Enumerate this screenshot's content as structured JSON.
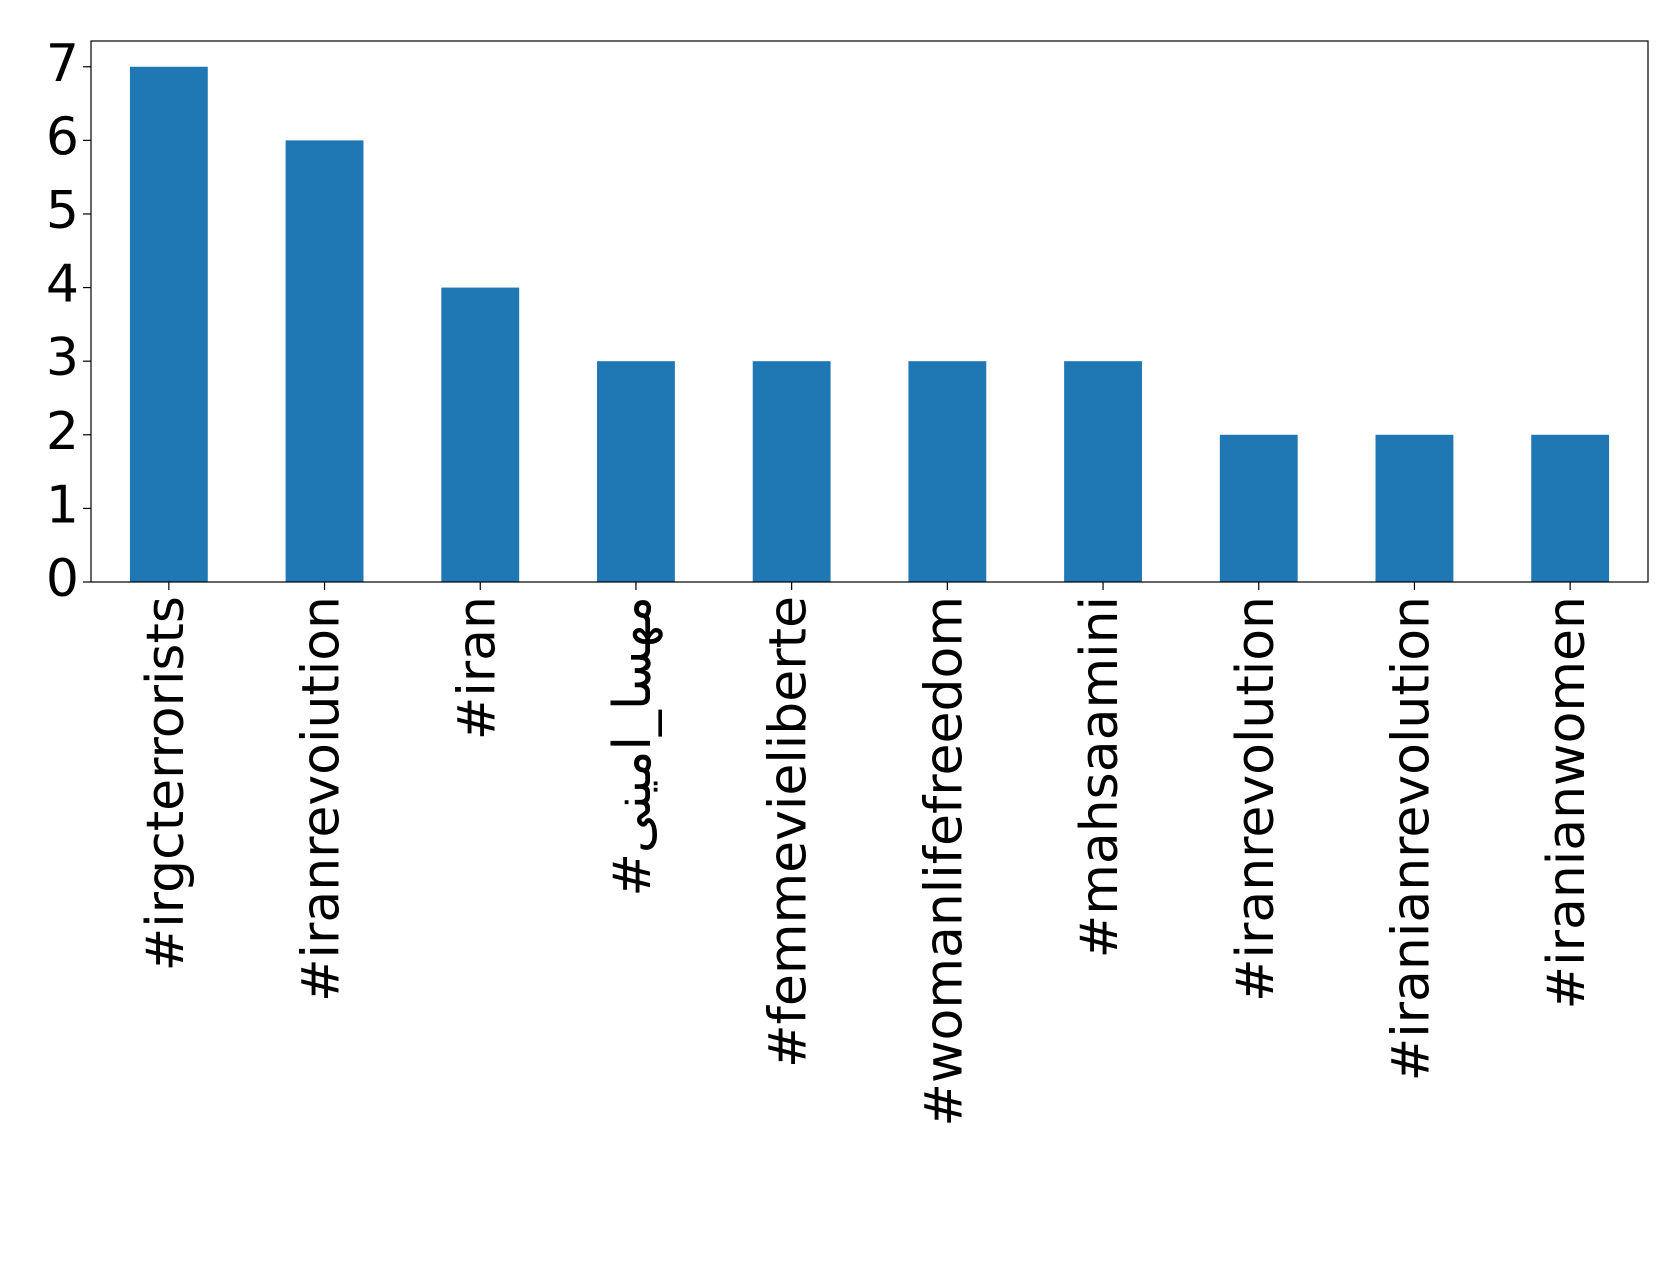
{
  "chart_data": {
    "type": "bar",
    "categories": [
      "#irgcterrorists",
      "#iranrevoiution",
      "#iran",
      "#مهسا_امینی",
      "#femmevieliberte",
      "#womanlifefreedom",
      "#mahsaamini",
      "#iranrevolution",
      "#iranianrevolution",
      "#iranianwomen"
    ],
    "values": [
      7,
      6,
      4,
      3,
      3,
      3,
      3,
      2,
      2,
      2
    ],
    "color": "#1f77b4",
    "ylim": [
      0,
      7.35
    ],
    "yticks": [
      0,
      1,
      2,
      3,
      4,
      5,
      6,
      7
    ],
    "grid": false
  }
}
